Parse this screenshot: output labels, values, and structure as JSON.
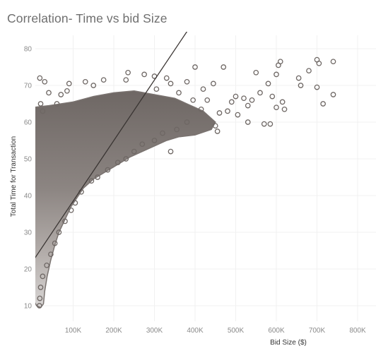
{
  "chart_data": {
    "type": "scatter",
    "title": "Correlation- Time vs bid Size",
    "xlabel": "Bid Size ($)",
    "ylabel": "Total Time for Transaction",
    "xlim": [
      0,
      850000
    ],
    "ylim": [
      8,
      84
    ],
    "x_ticks": [
      {
        "value": 100000,
        "label": "100K"
      },
      {
        "value": 200000,
        "label": "200K"
      },
      {
        "value": 300000,
        "label": "300K"
      },
      {
        "value": 400000,
        "label": "400K"
      },
      {
        "value": 500000,
        "label": "500K"
      },
      {
        "value": 600000,
        "label": "600K"
      },
      {
        "value": 700000,
        "label": "700K"
      },
      {
        "value": 800000,
        "label": "800K"
      }
    ],
    "y_ticks": [
      {
        "value": 10,
        "label": "10"
      },
      {
        "value": 20,
        "label": "20"
      },
      {
        "value": 30,
        "label": "30"
      },
      {
        "value": 40,
        "label": "40"
      },
      {
        "value": 50,
        "label": "50"
      },
      {
        "value": 60,
        "label": "60"
      },
      {
        "value": 70,
        "label": "70"
      },
      {
        "value": 80,
        "label": "80"
      }
    ],
    "grid": true,
    "trend_line": {
      "x": [
        0,
        382000
      ],
      "y": [
        22,
        85
      ]
    },
    "points": [
      [
        700000,
        77
      ],
      [
        740000,
        76.5
      ],
      [
        705000,
        76
      ],
      [
        610000,
        76.5
      ],
      [
        605000,
        75.5
      ],
      [
        680000,
        74
      ],
      [
        600000,
        73
      ],
      [
        550000,
        73.5
      ],
      [
        655000,
        72
      ],
      [
        400000,
        75
      ],
      [
        470000,
        75
      ],
      [
        740000,
        67.5
      ],
      [
        715000,
        65
      ],
      [
        660000,
        70
      ],
      [
        700000,
        69.5
      ],
      [
        580000,
        70.5
      ],
      [
        590000,
        67
      ],
      [
        560000,
        68
      ],
      [
        620000,
        63.5
      ],
      [
        600000,
        64
      ],
      [
        615000,
        65.5
      ],
      [
        570000,
        59.5
      ],
      [
        585000,
        59.5
      ],
      [
        530000,
        60
      ],
      [
        505000,
        62
      ],
      [
        530000,
        64.5
      ],
      [
        490000,
        65.5
      ],
      [
        460000,
        62.5
      ],
      [
        480000,
        63
      ],
      [
        450000,
        59
      ],
      [
        455000,
        57.5
      ],
      [
        415000,
        63.5
      ],
      [
        520000,
        66.5
      ],
      [
        500000,
        67
      ],
      [
        540000,
        66
      ],
      [
        445000,
        70.5
      ],
      [
        420000,
        69
      ],
      [
        380000,
        71
      ],
      [
        330000,
        72
      ],
      [
        300000,
        72.5
      ],
      [
        275000,
        73
      ],
      [
        235000,
        73.5
      ],
      [
        230000,
        71.5
      ],
      [
        175000,
        71.5
      ],
      [
        150000,
        70
      ],
      [
        130000,
        71
      ],
      [
        90000,
        70.5
      ],
      [
        85000,
        68.5
      ],
      [
        70000,
        67.5
      ],
      [
        40000,
        68
      ],
      [
        30000,
        71
      ],
      [
        18000,
        72
      ],
      [
        20000,
        65
      ],
      [
        25000,
        63
      ],
      [
        60000,
        65
      ],
      [
        305000,
        69
      ],
      [
        340000,
        70.5
      ],
      [
        360000,
        68
      ],
      [
        395000,
        66
      ],
      [
        430000,
        66
      ],
      [
        380000,
        60
      ],
      [
        355000,
        58
      ],
      [
        320000,
        57
      ],
      [
        300000,
        55
      ],
      [
        270000,
        54
      ],
      [
        340000,
        52
      ],
      [
        250000,
        52
      ],
      [
        230000,
        50
      ],
      [
        210000,
        49
      ],
      [
        185000,
        47
      ],
      [
        160000,
        45
      ],
      [
        145000,
        44
      ],
      [
        120000,
        41
      ],
      [
        105000,
        38
      ],
      [
        95000,
        36
      ],
      [
        80000,
        33
      ],
      [
        65000,
        30
      ],
      [
        55000,
        27
      ],
      [
        45000,
        24
      ],
      [
        35000,
        21
      ],
      [
        25000,
        18
      ],
      [
        20000,
        15
      ],
      [
        18000,
        12
      ],
      [
        17000,
        10
      ]
    ]
  }
}
